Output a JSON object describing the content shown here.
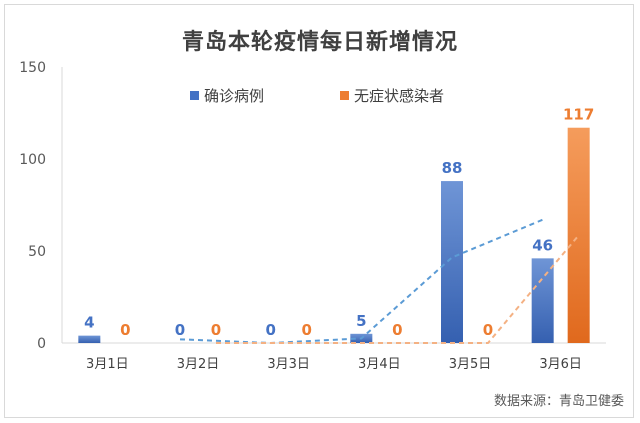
{
  "chart_data": {
    "type": "bar",
    "title": "青岛本轮疫情每日新增情况",
    "categories": [
      "3月1日",
      "3月2日",
      "3月3日",
      "3月4日",
      "3月5日",
      "3月6日"
    ],
    "series": [
      {
        "name": "确诊病例",
        "values": [
          4,
          0,
          0,
          5,
          88,
          46
        ],
        "color": "#4472c4",
        "trendline_color": "#5b9bd5"
      },
      {
        "name": "无症状感染者",
        "values": [
          0,
          0,
          0,
          0,
          0,
          117
        ],
        "color": "#ed7d31",
        "trendline_color": "#f4b183"
      }
    ],
    "ylim": [
      0,
      150
    ],
    "yticks": [
      0,
      50,
      100,
      150
    ],
    "grid": false,
    "legend_position": "top",
    "trendlines": "dashed moving average per series",
    "data_labels": true
  },
  "source": "数据来源：青岛卫健委"
}
